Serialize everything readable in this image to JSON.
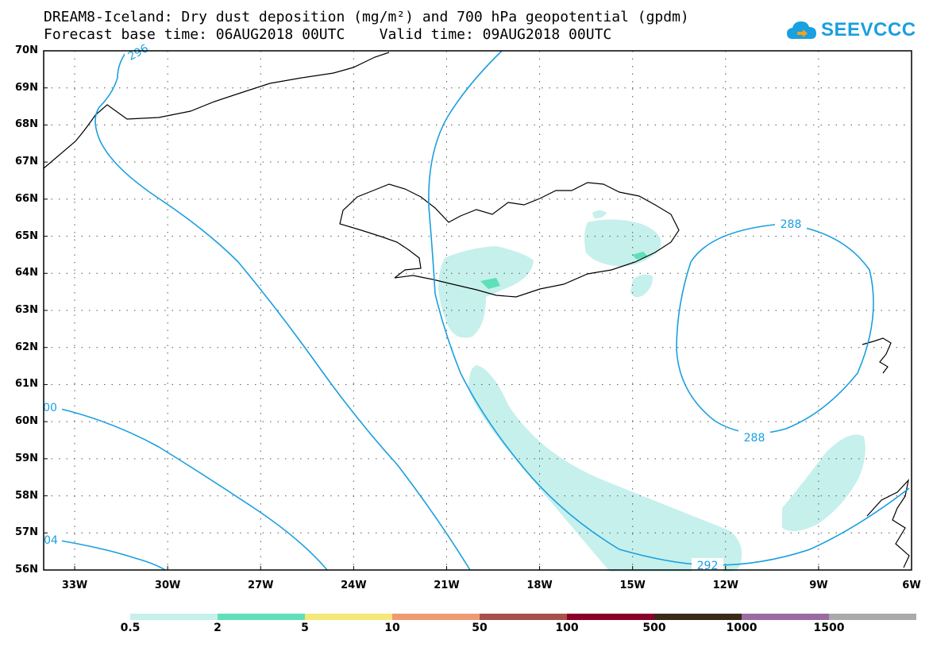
{
  "title": {
    "line1": "DREAM8-Iceland: Dry dust deposition (mg/m²) and 700 hPa geopotential (gpdm)",
    "line2": "Forecast base time: 06AUG2018 00UTC    Valid time: 09AUG2018 00UTC"
  },
  "logo": {
    "text": "SEEVCCC",
    "icon": "cloud-icon",
    "color": "#1a9fe0"
  },
  "map": {
    "lon_ticks": [
      "33W",
      "30W",
      "27W",
      "24W",
      "21W",
      "18W",
      "15W",
      "12W",
      "9W",
      "6W"
    ],
    "lat_ticks": [
      "70N",
      "69N",
      "68N",
      "67N",
      "66N",
      "65N",
      "64N",
      "63N",
      "62N",
      "61N",
      "60N",
      "59N",
      "58N",
      "57N",
      "56N"
    ],
    "lon_range": [
      -34,
      -6
    ],
    "lat_range": [
      56,
      70
    ],
    "contour_color": "#1a9fe0",
    "contour_labels": [
      "296",
      "00",
      "04",
      "288",
      "288",
      "292"
    ]
  },
  "colorbar": {
    "colors": [
      "#c6f0ec",
      "#5ee0b8",
      "#f5e878",
      "#ee9a72",
      "#a8504a",
      "#8a0028",
      "#3a2a18",
      "#9a6aa0",
      "#aaaaaa"
    ],
    "labels": [
      "0.5",
      "2",
      "5",
      "10",
      "50",
      "100",
      "500",
      "1000",
      "1500"
    ]
  }
}
